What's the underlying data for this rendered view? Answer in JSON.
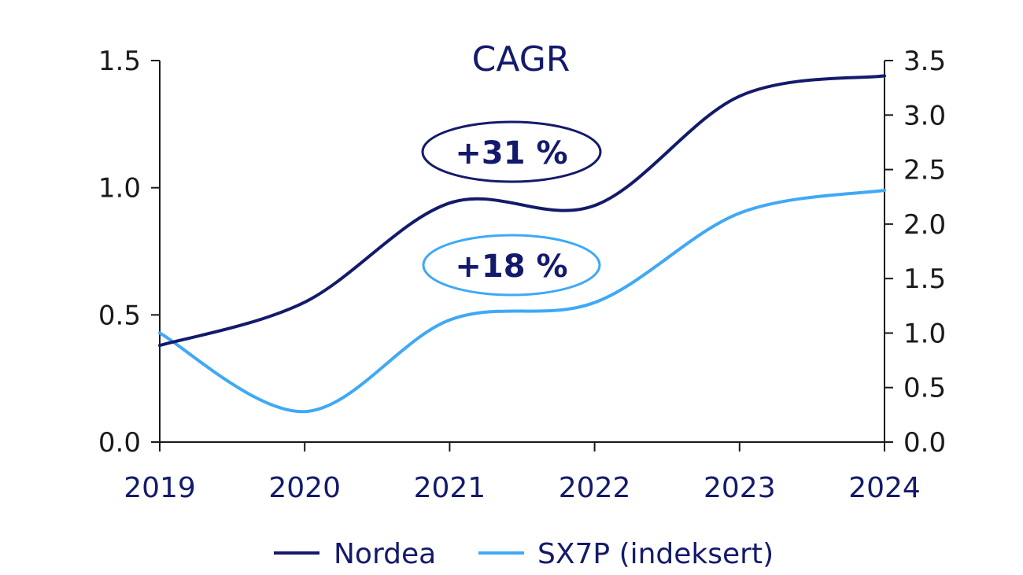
{
  "colors": {
    "nordea": "#141a6b",
    "sx7p": "#3fa9f5",
    "axis": "#1a1a1a",
    "text_dark": "#141a6b"
  },
  "chart_data": {
    "type": "line",
    "title": "CAGR",
    "x": [
      "2019",
      "2020",
      "2021",
      "2022",
      "2023",
      "2024"
    ],
    "y_left": {
      "ticks": [
        "0.0",
        "0.5",
        "1.0",
        "1.5"
      ],
      "lim": [
        0,
        1.5
      ]
    },
    "y_right": {
      "ticks": [
        "0.0",
        "0.5",
        "1.0",
        "1.5",
        "2.0",
        "2.5",
        "3.0",
        "3.5"
      ],
      "lim": [
        0,
        3.5
      ]
    },
    "series": [
      {
        "name": "Nordea",
        "axis": "left",
        "values": [
          0.38,
          0.55,
          0.94,
          0.93,
          1.36,
          1.44
        ]
      },
      {
        "name": "SX7P (indeksert)",
        "axis": "right",
        "values": [
          1.0,
          0.28,
          1.12,
          1.28,
          2.1,
          2.31
        ]
      }
    ],
    "annotations": [
      {
        "text": "+31 %",
        "series": "Nordea"
      },
      {
        "text": "+18 %",
        "series": "SX7P (indeksert)"
      }
    ],
    "legend": [
      "Nordea",
      "SX7P (indeksert)"
    ]
  }
}
